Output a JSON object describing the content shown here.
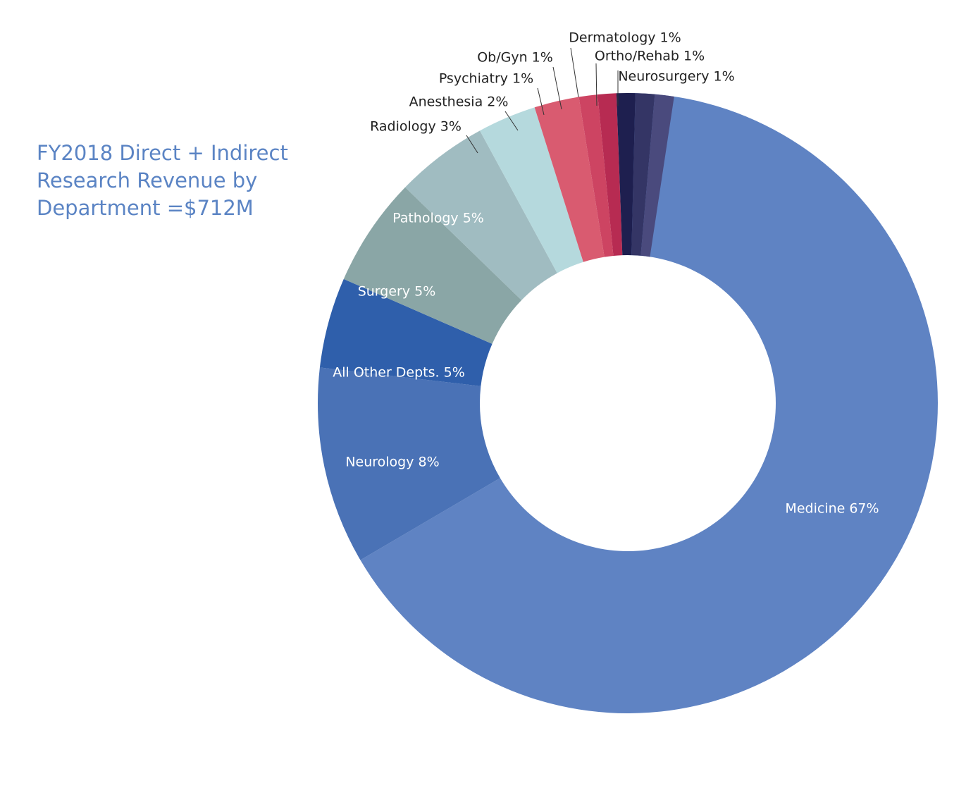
{
  "title_lines": [
    "FY2018 Direct + Indirect",
    "Research Revenue by",
    "Department =$712M"
  ],
  "colors": {
    "title": "#5b84c4"
  },
  "chart_data": {
    "type": "pie",
    "variant": "donut",
    "title": "FY2018 Direct + Indirect Research Revenue by Department =$712M",
    "slices": [
      {
        "name": "Medicine",
        "value": 67,
        "label": "Medicine 67%",
        "color": "#5f83c3"
      },
      {
        "name": "Neurology",
        "value": 8,
        "label": "Neurology 8%",
        "color": "#4a72b6"
      },
      {
        "name": "All Other Depts.",
        "value": 5,
        "label": "All Other Depts. 5%",
        "color": "#2f5fab"
      },
      {
        "name": "Surgery",
        "value": 5,
        "label": "Surgery 5%",
        "color": "#8aa6a6"
      },
      {
        "name": "Pathology",
        "value": 5,
        "label": "Pathology 5%",
        "color": "#a0bcc1"
      },
      {
        "name": "Radiology",
        "value": 3,
        "label": "Radiology 3%",
        "color": "#b5d9dd"
      },
      {
        "name": "Anesthesia",
        "value": 2,
        "label": "Anesthesia 2%",
        "color": "#d95b70"
      },
      {
        "name": "Psychiatry",
        "value": 1,
        "label": "Psychiatry 1%",
        "color": "#cd4462"
      },
      {
        "name": "Ob/Gyn",
        "value": 1,
        "label": "Ob/Gyn 1%",
        "color": "#b72b52"
      },
      {
        "name": "Dermatology",
        "value": 1,
        "label": "Dermatology 1%",
        "color": "#1e1f4f"
      },
      {
        "name": "Ortho/Rehab",
        "value": 1,
        "label": "Ortho/Rehab 1%",
        "color": "#343565"
      },
      {
        "name": "Neurosurgery",
        "value": 1,
        "label": "Neurosurgery 1%",
        "color": "#4a4a7d"
      }
    ]
  }
}
